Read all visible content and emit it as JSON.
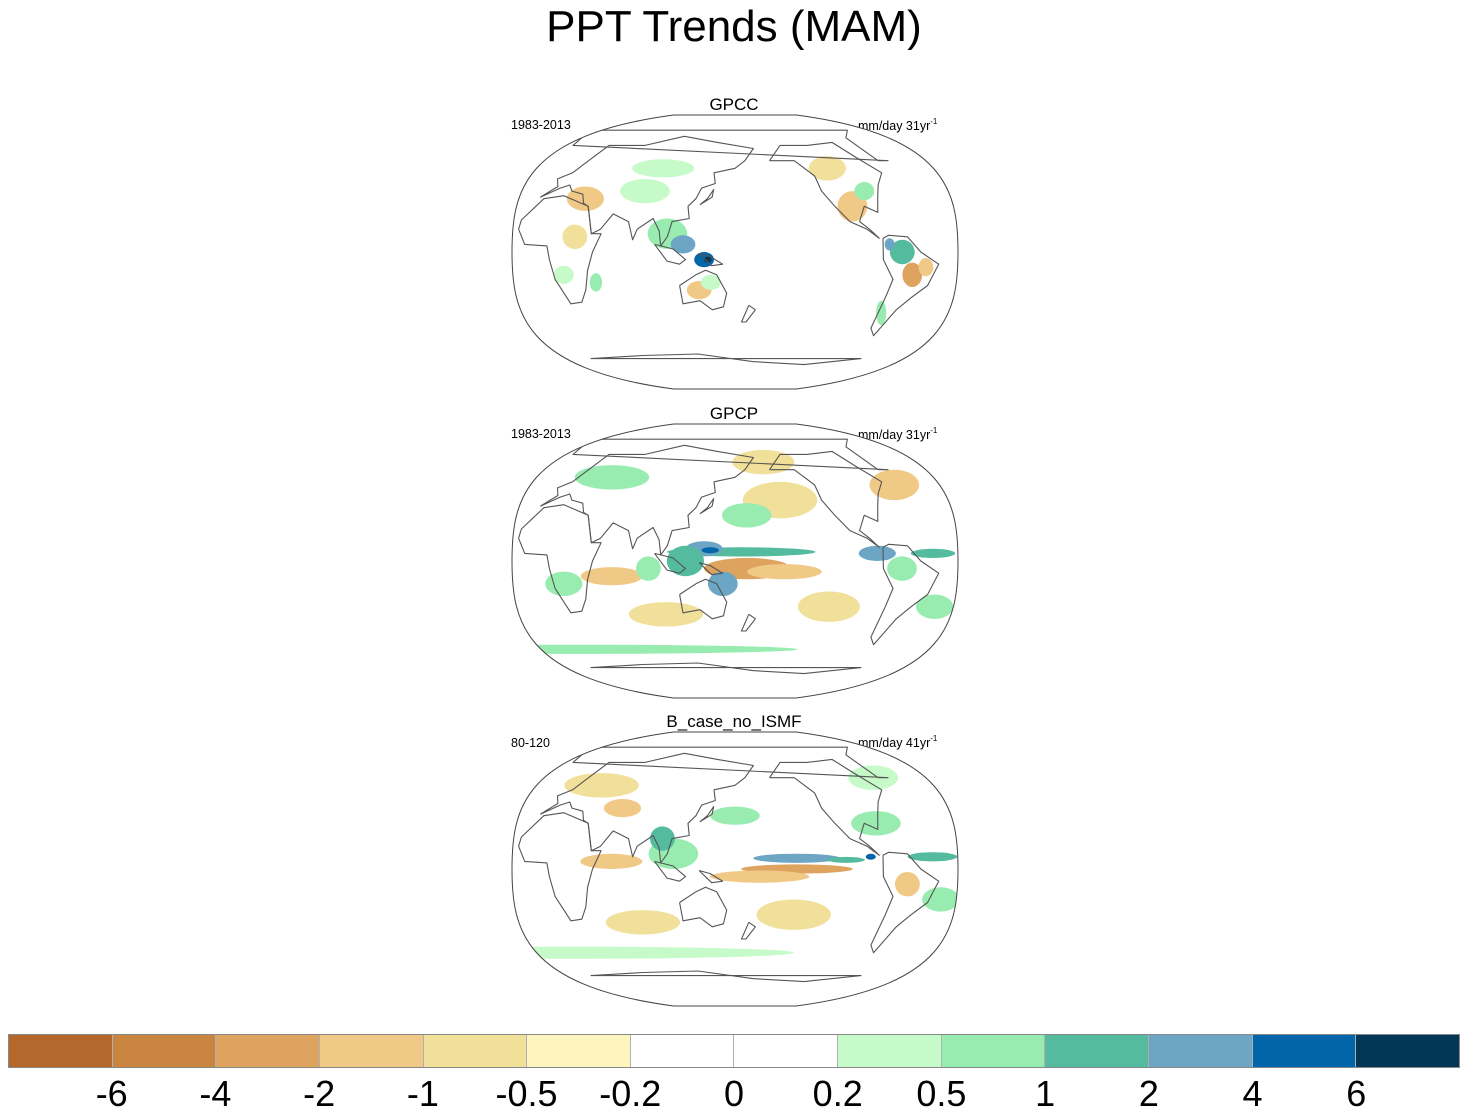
{
  "title": "PPT Trends (MAM)",
  "panels": [
    {
      "name": "GPCC",
      "period": "1983-2013",
      "units": "mm/day 31yr",
      "units_exp": "-1",
      "blobs": [
        {
          "lon": 105,
          "lat": 12,
          "rx": 16,
          "ry": 10,
          "c": "#98ecb0"
        },
        {
          "lon": 118,
          "lat": 5,
          "rx": 10,
          "ry": 6,
          "c": "#6ca6c4"
        },
        {
          "lon": 135,
          "lat": -5,
          "rx": 8,
          "ry": 5,
          "c": "#0065a9"
        },
        {
          "lon": 138,
          "lat": -5,
          "rx": 3,
          "ry": 2,
          "c": "#023758"
        },
        {
          "lon": 80,
          "lat": 40,
          "rx": 20,
          "ry": 8,
          "c": "#c6fac8"
        },
        {
          "lon": 90,
          "lat": 55,
          "rx": 25,
          "ry": 6,
          "c": "#c6fac8"
        },
        {
          "lon": 30,
          "lat": 35,
          "rx": 15,
          "ry": 8,
          "c": "#f1c986"
        },
        {
          "lon": 30,
          "lat": 10,
          "rx": 10,
          "ry": 8,
          "c": "#f1e09a"
        },
        {
          "lon": 130,
          "lat": -25,
          "rx": 10,
          "ry": 6,
          "c": "#f1c986"
        },
        {
          "lon": 140,
          "lat": -20,
          "rx": 8,
          "ry": 5,
          "c": "#c6fac8"
        },
        {
          "lon": -100,
          "lat": 30,
          "rx": 12,
          "ry": 10,
          "c": "#f1c986"
        },
        {
          "lon": -110,
          "lat": 55,
          "rx": 15,
          "ry": 8,
          "c": "#f1e09a"
        },
        {
          "lon": -85,
          "lat": 40,
          "rx": 8,
          "ry": 6,
          "c": "#98ecb0"
        },
        {
          "lon": -65,
          "lat": 0,
          "rx": 10,
          "ry": 8,
          "c": "#54bb9e"
        },
        {
          "lon": -75,
          "lat": 5,
          "rx": 4,
          "ry": 4,
          "c": "#6ca6c4"
        },
        {
          "lon": -55,
          "lat": -15,
          "rx": 8,
          "ry": 8,
          "c": "#dea35e"
        },
        {
          "lon": -45,
          "lat": -10,
          "rx": 6,
          "ry": 6,
          "c": "#f1c986"
        },
        {
          "lon": -70,
          "lat": -40,
          "rx": 4,
          "ry": 8,
          "c": "#98ecb0"
        },
        {
          "lon": 45,
          "lat": -20,
          "rx": 5,
          "ry": 6,
          "c": "#98ecb0"
        },
        {
          "lon": 20,
          "lat": -15,
          "rx": 8,
          "ry": 6,
          "c": "#c6fac8"
        }
      ]
    },
    {
      "name": "GPCP",
      "period": "1983-2013",
      "units": "mm/day 31yr",
      "units_exp": "-1",
      "blobs": [
        {
          "lon": 170,
          "lat": -5,
          "rx": 35,
          "ry": 7,
          "c": "#dea35e"
        },
        {
          "lon": 200,
          "lat": -7,
          "rx": 30,
          "ry": 5,
          "c": "#f1c986"
        },
        {
          "lon": 165,
          "lat": 6,
          "rx": 60,
          "ry": 3,
          "c": "#54bb9e"
        },
        {
          "lon": 135,
          "lat": 8,
          "rx": 15,
          "ry": 5,
          "c": "#6ca6c4"
        },
        {
          "lon": 140,
          "lat": 7,
          "rx": 7,
          "ry": 2,
          "c": "#0065a9"
        },
        {
          "lon": 120,
          "lat": 0,
          "rx": 15,
          "ry": 10,
          "c": "#54bb9e"
        },
        {
          "lon": 150,
          "lat": -15,
          "rx": 12,
          "ry": 8,
          "c": "#6ca6c4"
        },
        {
          "lon": -85,
          "lat": 5,
          "rx": 15,
          "ry": 5,
          "c": "#6ca6c4"
        },
        {
          "lon": -65,
          "lat": -5,
          "rx": 12,
          "ry": 8,
          "c": "#98ecb0"
        },
        {
          "lon": -40,
          "lat": 5,
          "rx": 18,
          "ry": 3,
          "c": "#54bb9e"
        },
        {
          "lon": 60,
          "lat": -10,
          "rx": 25,
          "ry": 6,
          "c": "#f1c986"
        },
        {
          "lon": 90,
          "lat": -5,
          "rx": 10,
          "ry": 8,
          "c": "#98ecb0"
        },
        {
          "lon": 20,
          "lat": -15,
          "rx": 15,
          "ry": 8,
          "c": "#98ecb0"
        },
        {
          "lon": -160,
          "lat": 40,
          "rx": 30,
          "ry": 12,
          "c": "#f1e09a"
        },
        {
          "lon": 170,
          "lat": 30,
          "rx": 20,
          "ry": 8,
          "c": "#98ecb0"
        },
        {
          "lon": -50,
          "lat": 50,
          "rx": 20,
          "ry": 10,
          "c": "#f1c986"
        },
        {
          "lon": -120,
          "lat": -30,
          "rx": 25,
          "ry": 10,
          "c": "#f1e09a"
        },
        {
          "lon": 100,
          "lat": -35,
          "rx": 30,
          "ry": 8,
          "c": "#f1e09a"
        },
        {
          "lon": 0,
          "lat": -58,
          "rx": 180,
          "ry": 3,
          "c": "#98ecb0"
        },
        {
          "lon": -30,
          "lat": -30,
          "rx": 15,
          "ry": 8,
          "c": "#98ecb0"
        },
        {
          "lon": 40,
          "lat": 55,
          "rx": 30,
          "ry": 8,
          "c": "#98ecb0"
        },
        {
          "lon": -170,
          "lat": 65,
          "rx": 25,
          "ry": 8,
          "c": "#f1e09a"
        }
      ]
    },
    {
      "name": "B_case_no_ISMF",
      "period": "80-120",
      "units": "mm/day 41yr",
      "units_exp": "-1",
      "blobs": [
        {
          "lon": -150,
          "lat": 7,
          "rx": 35,
          "ry": 3,
          "c": "#6ca6c4"
        },
        {
          "lon": -110,
          "lat": 6,
          "rx": 15,
          "ry": 2,
          "c": "#54bb9e"
        },
        {
          "lon": -90,
          "lat": 8,
          "rx": 4,
          "ry": 2,
          "c": "#0065a9"
        },
        {
          "lon": -150,
          "lat": 0,
          "rx": 45,
          "ry": 3,
          "c": "#dea35e"
        },
        {
          "lon": 180,
          "lat": -5,
          "rx": 40,
          "ry": 4,
          "c": "#f1c986"
        },
        {
          "lon": 110,
          "lat": 10,
          "rx": 20,
          "ry": 10,
          "c": "#98ecb0"
        },
        {
          "lon": 100,
          "lat": 20,
          "rx": 10,
          "ry": 8,
          "c": "#54bb9e"
        },
        {
          "lon": 60,
          "lat": 5,
          "rx": 25,
          "ry": 5,
          "c": "#f1c986"
        },
        {
          "lon": -40,
          "lat": 8,
          "rx": 20,
          "ry": 3,
          "c": "#54bb9e"
        },
        {
          "lon": -60,
          "lat": -10,
          "rx": 10,
          "ry": 8,
          "c": "#f1c986"
        },
        {
          "lon": -30,
          "lat": -20,
          "rx": 15,
          "ry": 8,
          "c": "#98ecb0"
        },
        {
          "lon": -80,
          "lat": 30,
          "rx": 20,
          "ry": 8,
          "c": "#98ecb0"
        },
        {
          "lon": 160,
          "lat": 35,
          "rx": 20,
          "ry": 6,
          "c": "#98ecb0"
        },
        {
          "lon": -150,
          "lat": -30,
          "rx": 30,
          "ry": 10,
          "c": "#f1e09a"
        },
        {
          "lon": 80,
          "lat": -35,
          "rx": 30,
          "ry": 8,
          "c": "#f1e09a"
        },
        {
          "lon": 0,
          "lat": -55,
          "rx": 180,
          "ry": 4,
          "c": "#c6fac8"
        },
        {
          "lon": 30,
          "lat": 55,
          "rx": 30,
          "ry": 8,
          "c": "#f1e09a"
        },
        {
          "lon": -60,
          "lat": 60,
          "rx": 20,
          "ry": 8,
          "c": "#c6fac8"
        },
        {
          "lon": 60,
          "lat": 40,
          "rx": 15,
          "ry": 6,
          "c": "#f1c986"
        }
      ]
    }
  ],
  "colorbar": {
    "labels": [
      "-6",
      "-4",
      "-2",
      "-1",
      "-0.5",
      "-0.2",
      "0",
      "0.2",
      "0.5",
      "1",
      "2",
      "4",
      "6"
    ],
    "colors": [
      "#b5682b",
      "#ca8540",
      "#dea35e",
      "#f1c986",
      "#f1e09a",
      "#fdf5bd",
      "#ffffff",
      "#ffffff",
      "#c6fac8",
      "#98ecb0",
      "#54bb9e",
      "#6ca6c4",
      "#0065a9",
      "#023758"
    ]
  },
  "colors": {
    "coastline": "#555555",
    "map_border": "#444444"
  }
}
